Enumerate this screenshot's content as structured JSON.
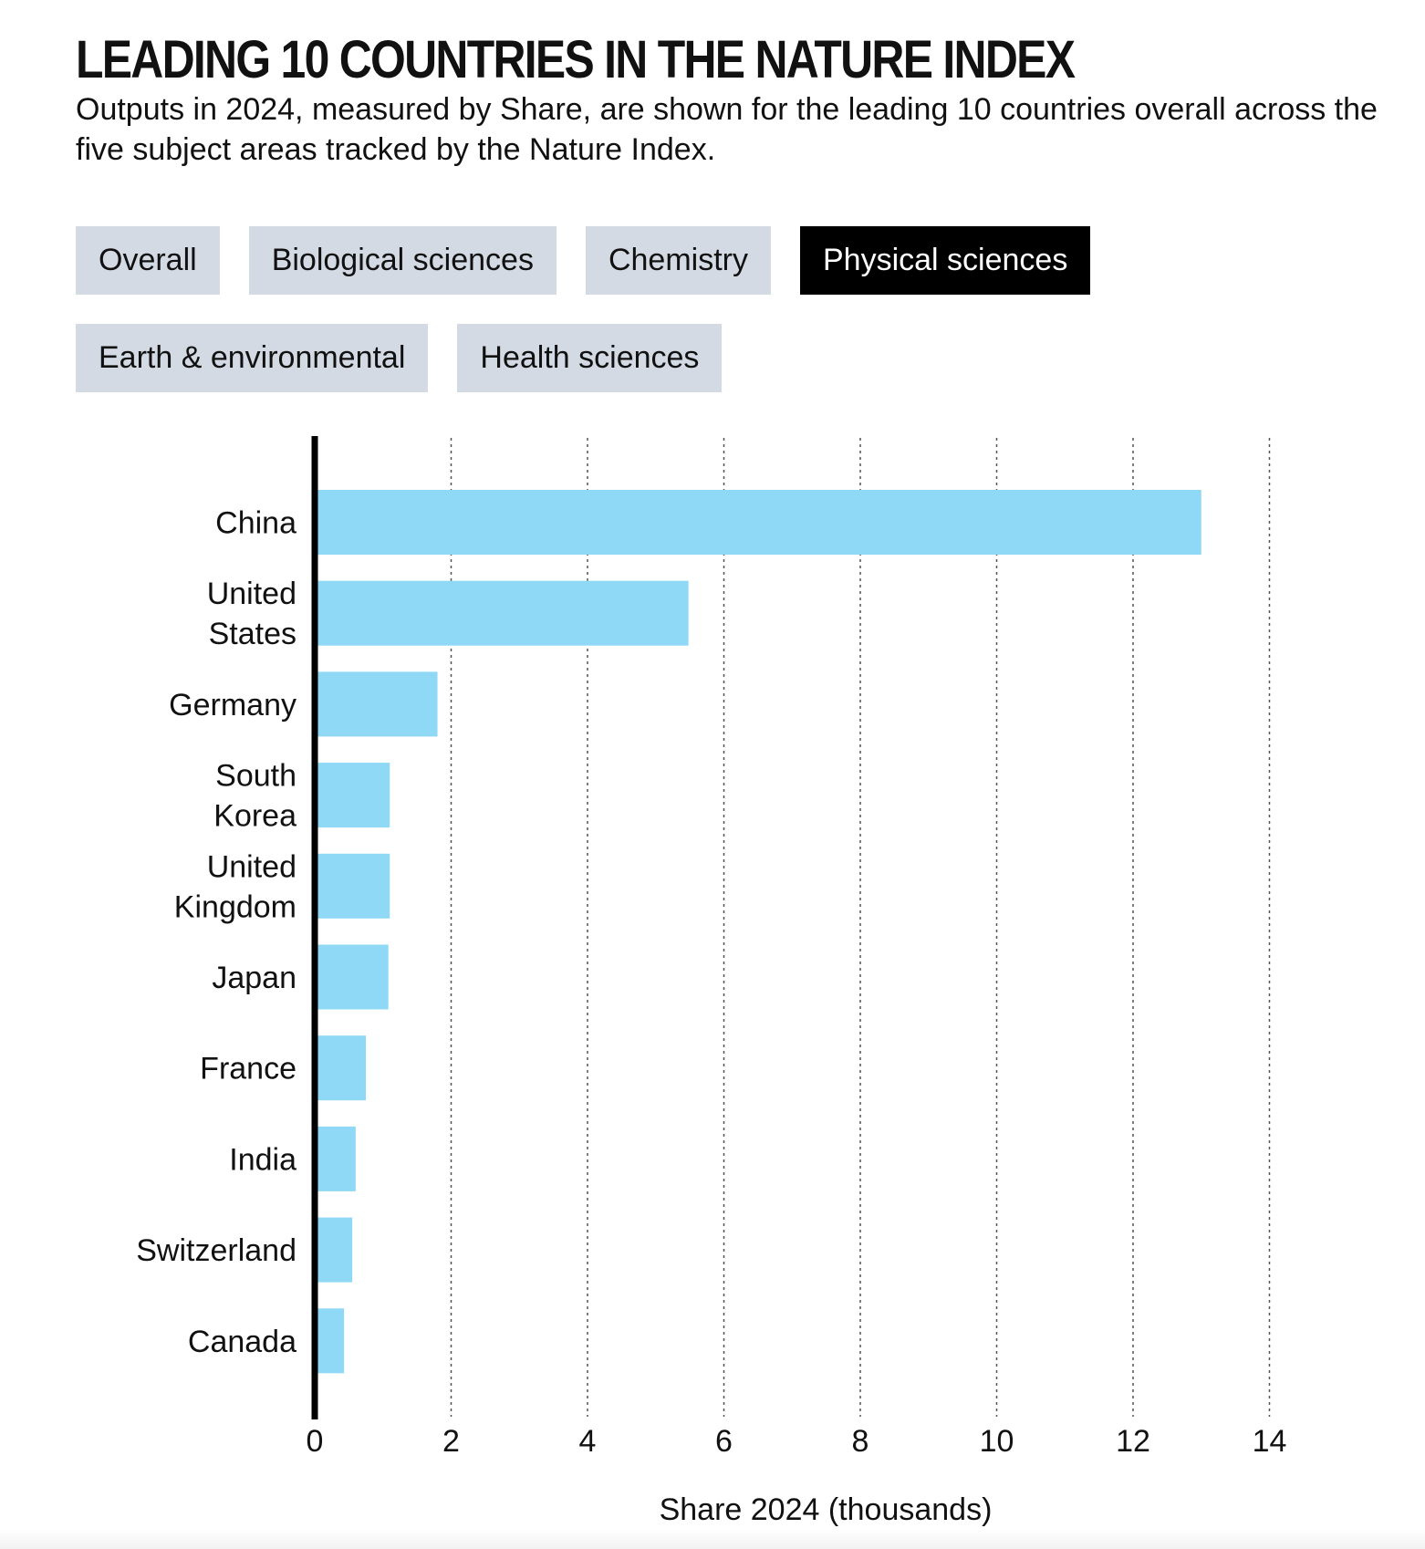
{
  "header": {
    "title": "LEADING 10 COUNTRIES IN THE NATURE INDEX",
    "subtitle": "Outputs in 2024, measured by Share, are shown for the leading 10 countries overall across the five subject areas tracked by the Nature Index."
  },
  "tabs": [
    {
      "label": "Overall",
      "active": false
    },
    {
      "label": "Biological sciences",
      "active": false
    },
    {
      "label": "Chemistry",
      "active": false
    },
    {
      "label": "Physical sciences",
      "active": true
    },
    {
      "label": "Earth & environmental",
      "active": false
    },
    {
      "label": "Health sciences",
      "active": false
    }
  ],
  "colors": {
    "bar": "#8fd8f6",
    "axis": "#000000",
    "grid": "#555555",
    "tab_bg": "#d3dae4",
    "tab_active_bg": "#000000"
  },
  "chart_data": {
    "type": "bar",
    "orientation": "horizontal",
    "categories": [
      [
        "China"
      ],
      [
        "United",
        "States"
      ],
      [
        "Germany"
      ],
      [
        "South",
        "Korea"
      ],
      [
        "United",
        "Kingdom"
      ],
      [
        "Japan"
      ],
      [
        "France"
      ],
      [
        "India"
      ],
      [
        "Switzerland"
      ],
      [
        "Canada"
      ]
    ],
    "values": [
      13.0,
      5.48,
      1.8,
      1.1,
      1.1,
      1.08,
      0.75,
      0.6,
      0.55,
      0.43
    ],
    "xlabel": "Share 2024 (thousands)",
    "xlim": [
      0,
      14
    ],
    "xticks": [
      "0",
      "2",
      "4",
      "6",
      "8",
      "10",
      "12",
      "14"
    ],
    "grid": "vertical dashed"
  }
}
